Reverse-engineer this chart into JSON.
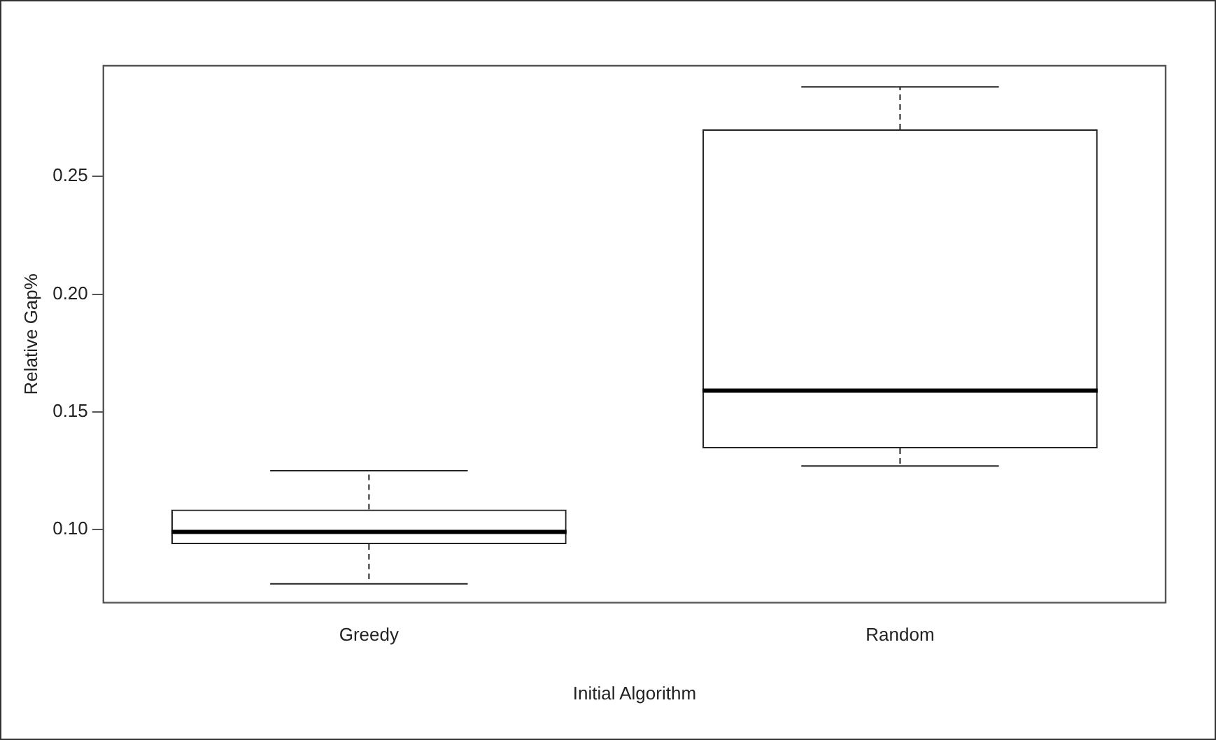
{
  "chart_data": {
    "type": "box",
    "xlabel": "Initial Algorithm",
    "ylabel": "Relative Gap%",
    "categories": [
      "Greedy",
      "Random"
    ],
    "boxes": [
      {
        "low": 0.077,
        "q1": 0.0938,
        "median": 0.099,
        "q3": 0.1085,
        "high": 0.125
      },
      {
        "low": 0.127,
        "q1": 0.1345,
        "median": 0.159,
        "q3": 0.27,
        "high": 0.288
      }
    ],
    "color": "#222222",
    "ylim": [
      0.069,
      0.297
    ],
    "yticks": [
      {
        "value": 0.1,
        "label": "0.10"
      },
      {
        "value": 0.15,
        "label": "0.15"
      },
      {
        "value": 0.2,
        "label": "0.20"
      },
      {
        "value": 0.25,
        "label": "0.25"
      }
    ],
    "grid": false,
    "legend": false
  }
}
